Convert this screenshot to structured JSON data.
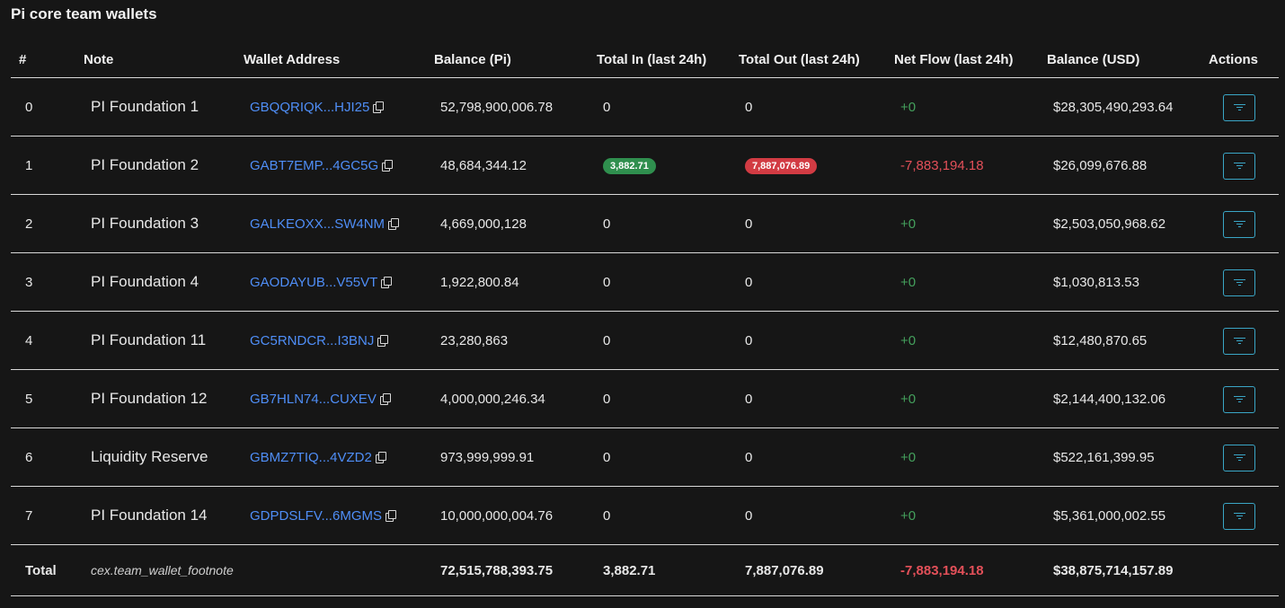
{
  "page": {
    "title": "Pi core team wallets"
  },
  "table": {
    "headers": [
      "#",
      "Note",
      "Wallet Address",
      "Balance (Pi)",
      "Total In (last 24h)",
      "Total Out (last 24h)",
      "Net Flow (last 24h)",
      "Balance (USD)",
      "Actions"
    ],
    "rows": [
      {
        "index": "0",
        "note": "PI Foundation 1",
        "address": "GBQQRIQK...HJI25",
        "balance_pi": "52,798,900,006.78",
        "total_in": "0",
        "total_out": "0",
        "net_flow": "+0",
        "balance_usd": "$28,305,490,293.64"
      },
      {
        "index": "1",
        "note": "PI Foundation 2",
        "address": "GABT7EMP...4GC5G",
        "balance_pi": "48,684,344.12",
        "total_in": "3,882.71",
        "total_out": "7,887,076.89",
        "net_flow": "-7,883,194.18",
        "balance_usd": "$26,099,676.88"
      },
      {
        "index": "2",
        "note": "PI Foundation 3",
        "address": "GALKEOXX...SW4NM",
        "balance_pi": "4,669,000,128",
        "total_in": "0",
        "total_out": "0",
        "net_flow": "+0",
        "balance_usd": "$2,503,050,968.62"
      },
      {
        "index": "3",
        "note": "PI Foundation 4",
        "address": "GAODAYUB...V55VT",
        "balance_pi": "1,922,800.84",
        "total_in": "0",
        "total_out": "0",
        "net_flow": "+0",
        "balance_usd": "$1,030,813.53"
      },
      {
        "index": "4",
        "note": "PI Foundation 11",
        "address": "GC5RNDCR...I3BNJ",
        "balance_pi": "23,280,863",
        "total_in": "0",
        "total_out": "0",
        "net_flow": "+0",
        "balance_usd": "$12,480,870.65"
      },
      {
        "index": "5",
        "note": "PI Foundation 12",
        "address": "GB7HLN74...CUXEV",
        "balance_pi": "4,000,000,246.34",
        "total_in": "0",
        "total_out": "0",
        "net_flow": "+0",
        "balance_usd": "$2,144,400,132.06"
      },
      {
        "index": "6",
        "note": "Liquidity Reserve",
        "address": "GBMZ7TIQ...4VZD2",
        "balance_pi": "973,999,999.91",
        "total_in": "0",
        "total_out": "0",
        "net_flow": "+0",
        "balance_usd": "$522,161,399.95"
      },
      {
        "index": "7",
        "note": "PI Foundation 14",
        "address": "GDPDSLFV...6MGMS",
        "balance_pi": "10,000,000,004.76",
        "total_in": "0",
        "total_out": "0",
        "net_flow": "+0",
        "balance_usd": "$5,361,000,002.55"
      }
    ],
    "total": {
      "label": "Total",
      "footnote": "cex.team_wallet_footnote",
      "balance_pi": "72,515,788,393.75",
      "total_in": "3,882.71",
      "total_out": "7,887,076.89",
      "net_flow": "-7,883,194.18",
      "balance_usd": "$38,875,714,157.89"
    }
  },
  "colors": {
    "background": "#161616",
    "link": "#4f8ef7",
    "positive": "#44a05c",
    "negative": "#e35059",
    "badge_green": "#2f8f4e",
    "badge_red": "#d23b43",
    "action_border": "#3aa6c6"
  },
  "icons": {
    "copy": "copy-icon",
    "action": "filter-icon"
  }
}
